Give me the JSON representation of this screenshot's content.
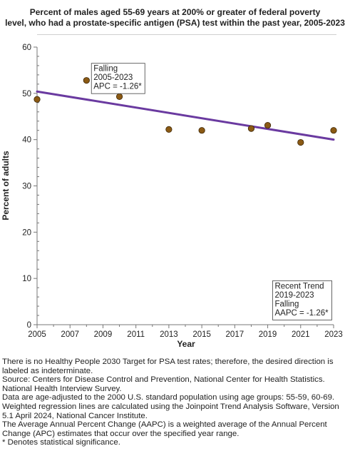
{
  "chart_data": {
    "type": "scatter",
    "title_lines": [
      "Percent of males aged 55-69 years at 200% or greater of federal poverty",
      "level, who had a prostate-specific antigen (PSA) test within the past year, 2005-2023"
    ],
    "xlabel": "Year",
    "ylabel": "Percent of adults",
    "xlim": [
      2005,
      2023
    ],
    "ylim": [
      0,
      60
    ],
    "xticks": [
      2005,
      2007,
      2009,
      2011,
      2013,
      2015,
      2017,
      2019,
      2021,
      2023
    ],
    "yticks": [
      0,
      10,
      20,
      30,
      40,
      50,
      60
    ],
    "points": {
      "x": [
        2005,
        2008,
        2010,
        2013,
        2015,
        2018,
        2019,
        2021,
        2023
      ],
      "y": [
        48.7,
        52.8,
        49.3,
        42.2,
        42.0,
        42.4,
        43.1,
        39.4,
        42.0
      ]
    },
    "trend_line": {
      "x": [
        2005,
        2023
      ],
      "y": [
        50.4,
        40.0
      ]
    },
    "annotations": [
      {
        "lines": [
          "Falling",
          "2005-2023",
          "APC = -1.26*"
        ],
        "x": 2008.3,
        "y": 56.5
      },
      {
        "lines": [
          "Recent Trend",
          "2019-2023",
          "Falling",
          "AAPC = -1.26*"
        ],
        "x": 2019.3,
        "y": 9.5
      }
    ],
    "colors": {
      "point_fill": "#8B5A14",
      "point_stroke": "#3d2708",
      "trend": "#6a3aa0",
      "axis": "#777777",
      "tick": "#222222"
    }
  },
  "notes": [
    "There is no Healthy People 2030 Target for PSA test rates; therefore, the desired direction is labeled as indeterminate.",
    "Source: Centers for Disease Control and Prevention, National Center for Health Statistics. National Health Interview Survey.",
    "Data are age-adjusted to the 2000 U.S. standard population using age groups: 55-59, 60-69.",
    "Weighted regression lines are calculated using the Joinpoint Trend Analysis Software, Version 5.1 April 2024, National Cancer Institute.",
    "The Average Annual Percent Change (AAPC) is a weighted average of the Annual Percent Change (APC) estimates that occur over the specified year range.",
    "* Denotes statistical significance."
  ]
}
